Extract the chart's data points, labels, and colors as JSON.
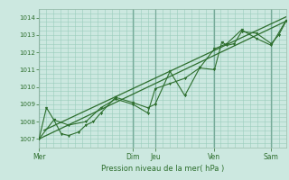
{
  "bg_color": "#cce8e0",
  "plot_bg_color": "#cce8e0",
  "grid_color": "#99ccbb",
  "line_color": "#2d6e2d",
  "marker_color": "#2d6e2d",
  "ylabel_ticks": [
    1007,
    1008,
    1009,
    1010,
    1011,
    1012,
    1013,
    1014
  ],
  "ylim": [
    1006.5,
    1014.5
  ],
  "xlabel": "Pression niveau de la mer( hPa )",
  "xlabel_color": "#2d6e2d",
  "day_labels": [
    "Mer",
    "Dim",
    "Jeu",
    "Ven",
    "Sam"
  ],
  "day_positions": [
    0.0,
    0.38,
    0.47,
    0.71,
    0.94
  ],
  "xlim": [
    0.0,
    1.0
  ],
  "smooth_line": [
    [
      0.0,
      1007.0
    ],
    [
      1.0,
      1013.8
    ]
  ],
  "smooth_line2": [
    [
      0.02,
      1007.5
    ],
    [
      1.0,
      1014.05
    ]
  ],
  "jagged_x": [
    0.0,
    0.03,
    0.06,
    0.09,
    0.12,
    0.16,
    0.19,
    0.22,
    0.25,
    0.31,
    0.38,
    0.44,
    0.47,
    0.53,
    0.59,
    0.65,
    0.71,
    0.74,
    0.76,
    0.79,
    0.82,
    0.88,
    0.94,
    0.97,
    1.0
  ],
  "jagged_y": [
    1007.0,
    1008.8,
    1008.1,
    1007.3,
    1007.2,
    1007.4,
    1007.8,
    1008.0,
    1008.5,
    1009.4,
    1009.1,
    1008.8,
    1009.0,
    1010.9,
    1009.5,
    1011.1,
    1011.0,
    1012.6,
    1012.4,
    1012.5,
    1013.2,
    1013.1,
    1012.5,
    1013.0,
    1013.8
  ],
  "jagged2_x": [
    0.0,
    0.06,
    0.12,
    0.19,
    0.25,
    0.31,
    0.38,
    0.44,
    0.47,
    0.53,
    0.59,
    0.65,
    0.71,
    0.76,
    0.82,
    0.88,
    0.94,
    1.0
  ],
  "jagged2_y": [
    1007.0,
    1008.1,
    1007.8,
    1008.0,
    1008.8,
    1009.3,
    1009.0,
    1008.5,
    1009.9,
    1010.2,
    1010.5,
    1011.1,
    1012.2,
    1012.5,
    1013.3,
    1012.8,
    1012.4,
    1013.85
  ]
}
